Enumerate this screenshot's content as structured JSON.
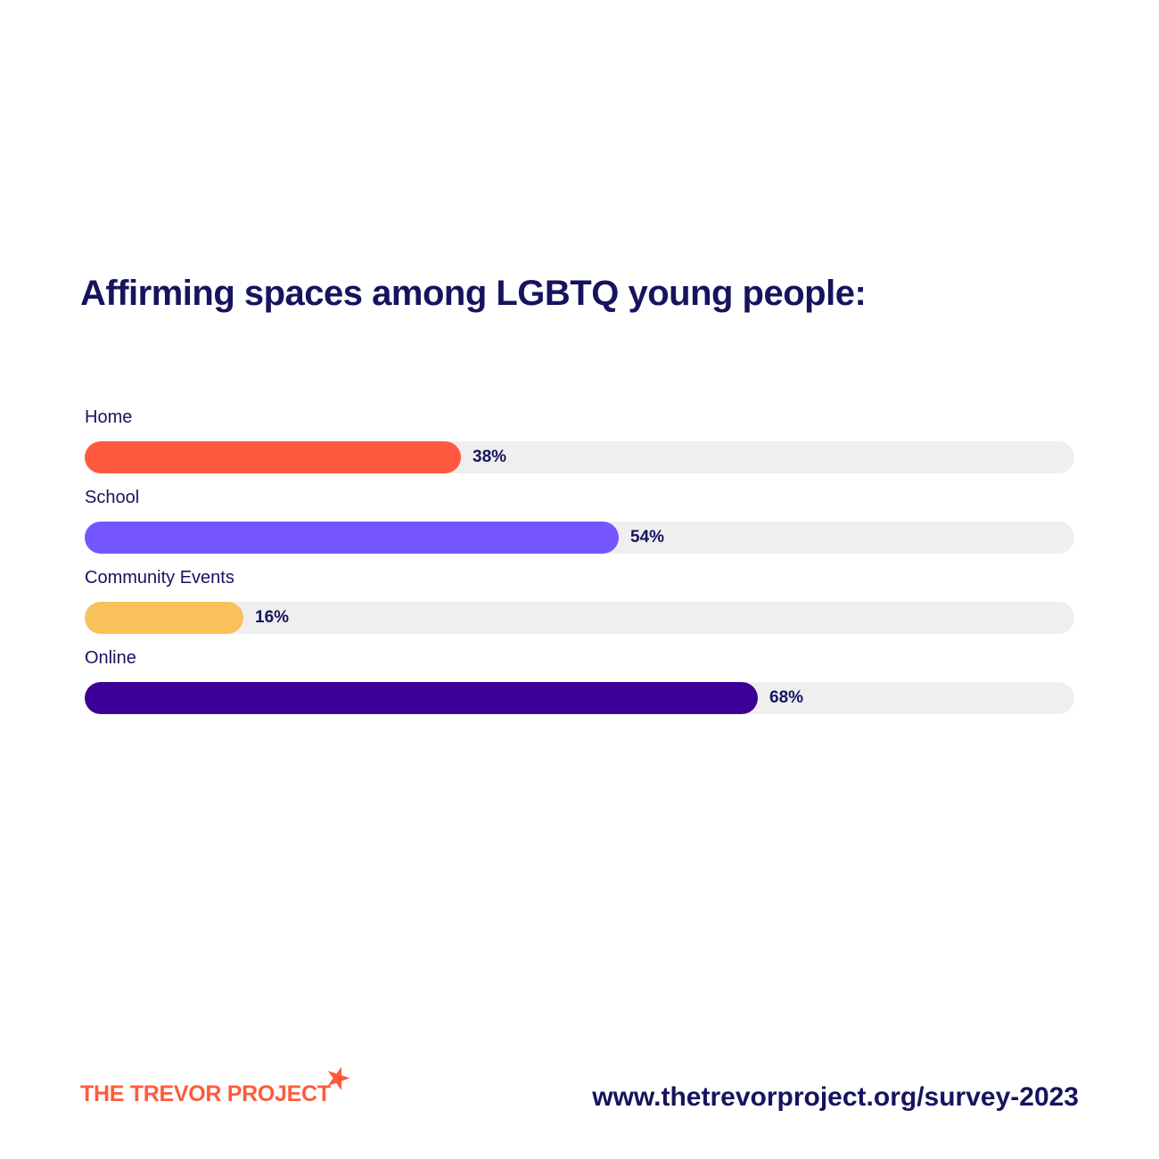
{
  "chart_data": {
    "type": "bar",
    "orientation": "horizontal",
    "title": "Affirming spaces among LGBTQ young people:",
    "categories": [
      "Home",
      "School",
      "Community Events",
      "Online"
    ],
    "values": [
      38,
      54,
      16,
      68
    ],
    "value_labels": [
      "38%",
      "54%",
      "16%",
      "68%"
    ],
    "colors": [
      "#ff5a3f",
      "#7555ff",
      "#f9c15a",
      "#3d0097"
    ],
    "track_color": "#efefef",
    "xlim": [
      0,
      100
    ],
    "unit": "%"
  },
  "footer": {
    "logo_text": "THE TREVOR PROJECT",
    "logo_icon": "star-icon",
    "url": "www.thetrevorproject.org/survey-2023"
  }
}
